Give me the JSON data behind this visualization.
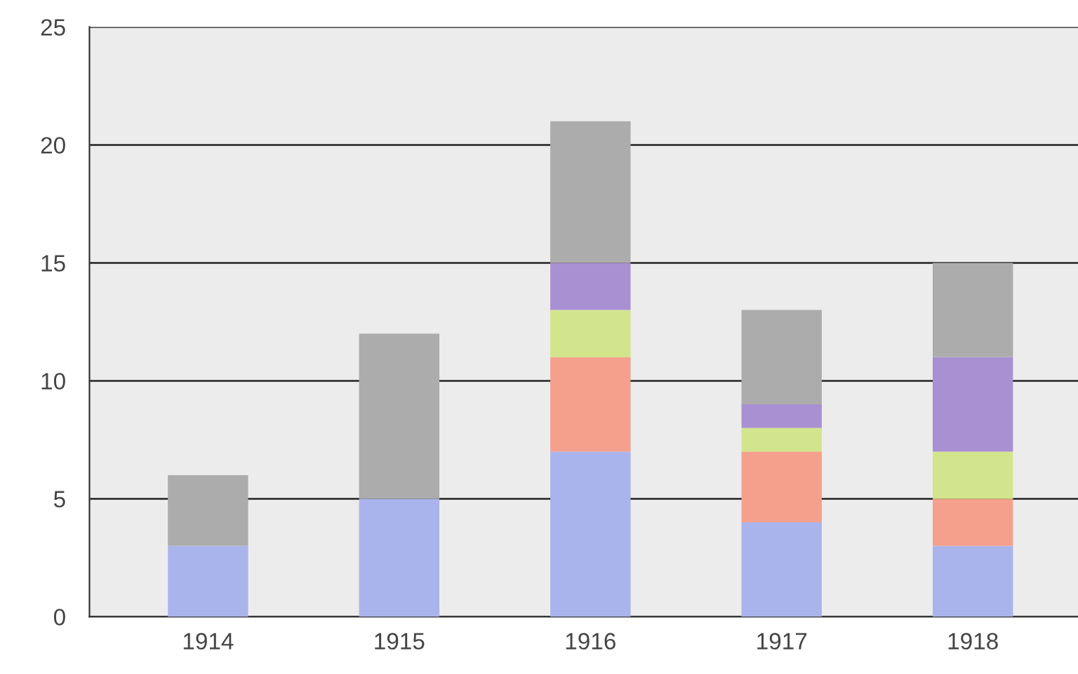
{
  "chart_data": {
    "type": "bar",
    "stacked": true,
    "categories": [
      "1914",
      "1915",
      "1916",
      "1917",
      "1918"
    ],
    "series": [
      {
        "color": "#aab4ec",
        "values": [
          3,
          5,
          7,
          4,
          3
        ]
      },
      {
        "color": "#f5a08c",
        "values": [
          0,
          0,
          4,
          3,
          2
        ]
      },
      {
        "color": "#d2e58c",
        "values": [
          0,
          0,
          2,
          1,
          2
        ]
      },
      {
        "color": "#a990d2",
        "values": [
          0,
          0,
          2,
          1,
          4
        ]
      },
      {
        "color": "#acacac",
        "values": [
          3,
          7,
          6,
          4,
          4
        ]
      }
    ],
    "ylim": [
      0,
      25
    ],
    "yticks": [
      0,
      5,
      10,
      15,
      20,
      25
    ],
    "grid": "y"
  }
}
